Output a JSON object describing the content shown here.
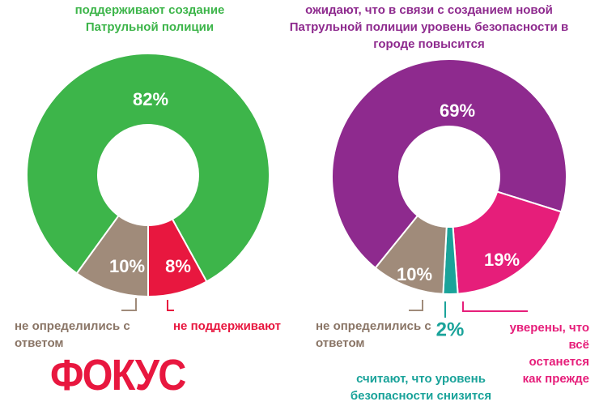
{
  "chart_data": [
    {
      "type": "pie",
      "donut": true,
      "title": "поддерживают создание Патрульной полиции",
      "categories": [
        "поддерживают создание Патрульной полиции",
        "не поддерживают",
        "не определились с ответом"
      ],
      "values": [
        82,
        8,
        10
      ],
      "value_labels": [
        "82%",
        "8%",
        "10%"
      ],
      "colors": [
        "#3db54a",
        "#e8173f",
        "#a08b7a"
      ]
    },
    {
      "type": "pie",
      "donut": true,
      "title": "ожидают, что в связи с созданием новой Патрульной полиции уровень безопасности в городе повысится",
      "categories": [
        "ожидают, что в связи с созданием новой Патрульной полиции уровень безопасности в городе повысится",
        "уверены, что всё останется как прежде",
        "считают, что уровень безопасности снизится",
        "не определились с ответом"
      ],
      "values": [
        69,
        19,
        2,
        10
      ],
      "value_labels": [
        "69%",
        "19%",
        "2%",
        "10%"
      ],
      "colors": [
        "#8e2a8e",
        "#e61e7a",
        "#1aa39a",
        "#a08b7a"
      ]
    }
  ],
  "logo": "ФОКУС"
}
